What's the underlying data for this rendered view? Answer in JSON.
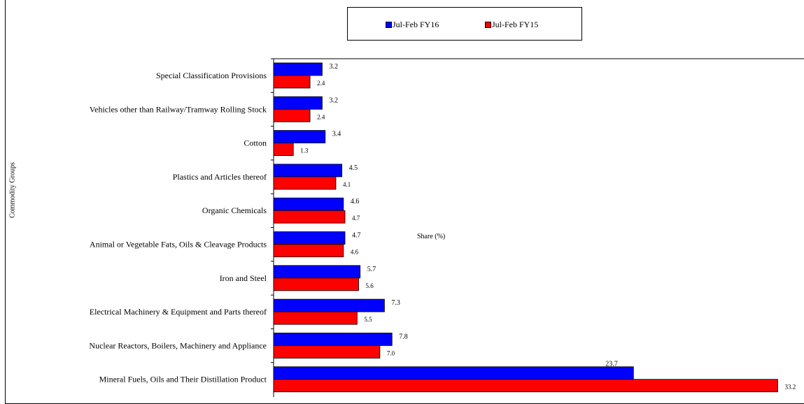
{
  "chart_data": {
    "type": "bar",
    "orientation": "horizontal",
    "xlabel": "Share (%)",
    "ylabel": "Commodity Groups",
    "xlim": [
      0,
      35
    ],
    "legend_position": "top-center",
    "categories": [
      "Special Classification Provisions",
      "Vehicles other than Railway/Tramway Rolling Stock",
      "Cotton",
      "Plastics and Articles thereof",
      "Organic Chemicals",
      "Animal or Vegetable Fats, Oils & Cleavage Products",
      "Iron and Steel",
      "Electrical Machinery & Equipment and Parts thereof",
      "Nuclear Reactors, Boilers, Machinery and Appliance",
      "Mineral Fuels, Oils and Their Distillation Product"
    ],
    "series": [
      {
        "name": "Jul-Feb FY16",
        "color": "#0000ff",
        "values": [
          3.2,
          3.2,
          3.4,
          4.5,
          4.6,
          4.7,
          5.7,
          7.3,
          7.8,
          23.7
        ],
        "labels": [
          "3.2",
          "3.2",
          "3.4",
          "4.5",
          "4.6",
          "4.7",
          "5.7",
          "7.3",
          "7.8",
          "23.7"
        ]
      },
      {
        "name": "Jul-Feb FY15",
        "color": "#ff0000",
        "values": [
          2.4,
          2.4,
          1.3,
          4.1,
          4.7,
          4.6,
          5.6,
          5.5,
          7.0,
          33.2
        ],
        "labels": [
          "2.4",
          "2.4",
          "1.3",
          "4.1",
          "4.7",
          "4.6",
          "5.6",
          "5.5",
          "7.0",
          "33.2"
        ]
      }
    ]
  }
}
